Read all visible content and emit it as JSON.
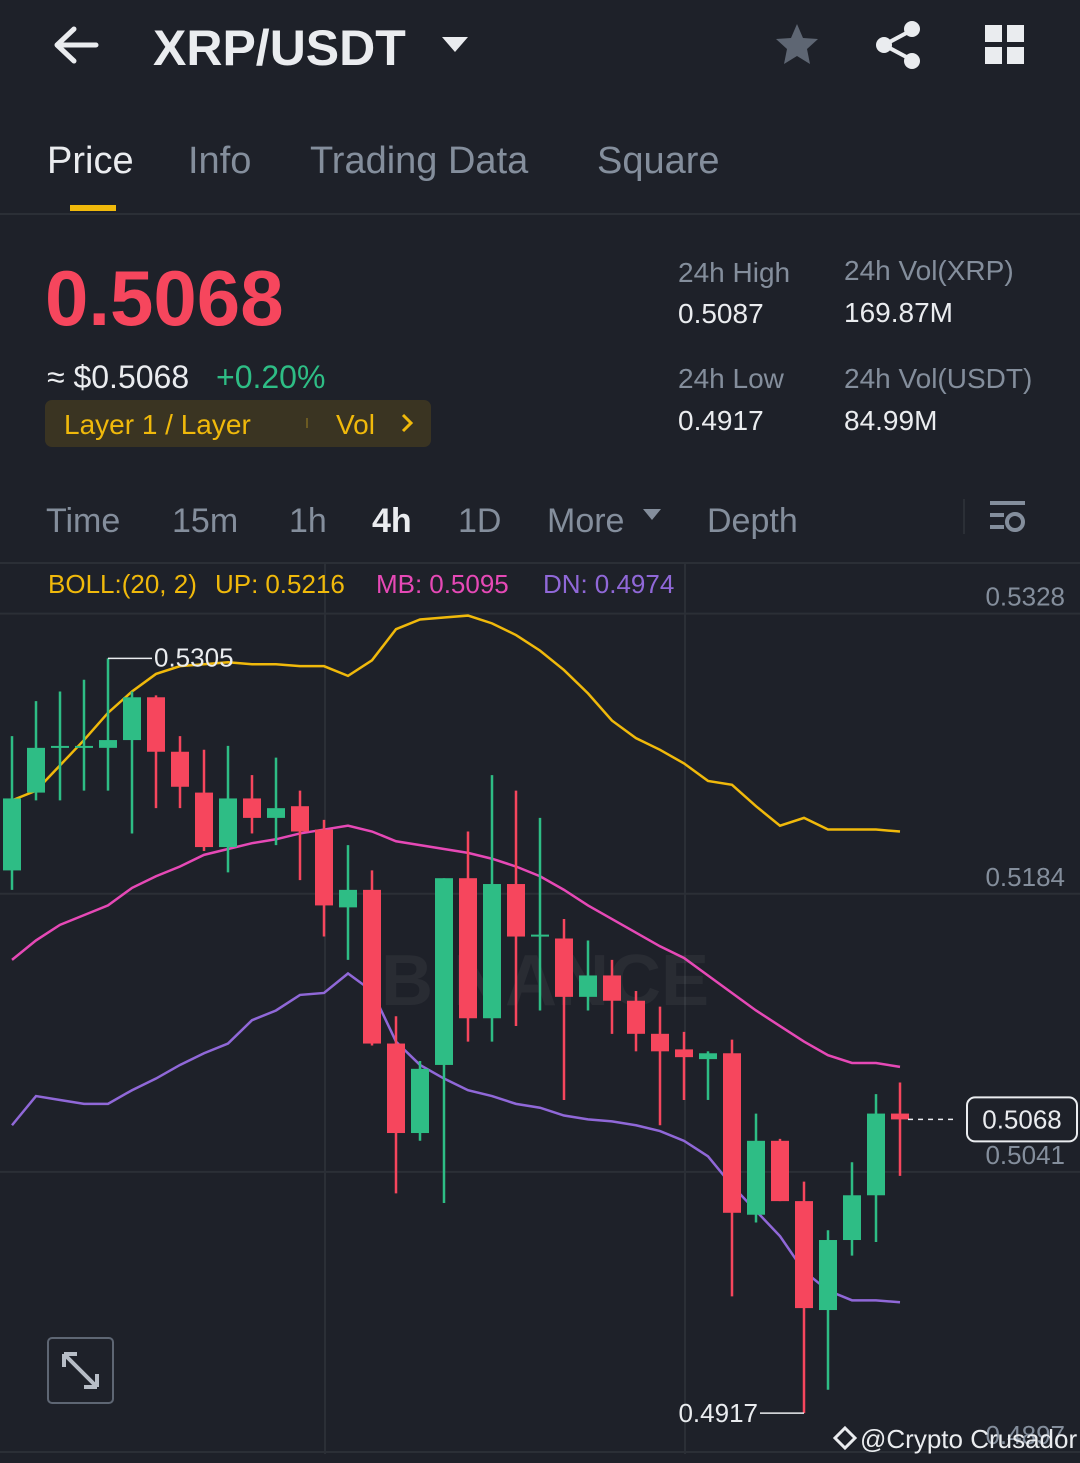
{
  "header": {
    "pair": "XRP/USDT"
  },
  "tabs": [
    "Price",
    "Info",
    "Trading Data",
    "Square"
  ],
  "ticker": {
    "price": "0.5068",
    "usd_price": "≈ $0.5068",
    "change": "+0.20%",
    "tag": "Layer 1 / Layer",
    "tag_extra": "Vol"
  },
  "stats": [
    {
      "label": "24h High",
      "value": "0.5087"
    },
    {
      "label": "24h Vol(XRP)",
      "value": "169.87M"
    },
    {
      "label": "24h Low",
      "value": "0.4917"
    },
    {
      "label": "24h Vol(USDT)",
      "value": "84.99M"
    }
  ],
  "intervals": [
    "Time",
    "15m",
    "1h",
    "4h",
    "1D",
    "More",
    "Depth"
  ],
  "watermark": "@Crypto Crusador",
  "chart_data": {
    "type": "candlestick",
    "indicator": "BOLL:(20, 2)",
    "logo_text": "BINANCE",
    "up_color": "#2ebd85",
    "down_color": "#f6465d",
    "ylim": [
      0.4896,
      0.5353
    ],
    "yticks": [
      0.5328,
      0.5184,
      0.5041,
      0.4897
    ],
    "grid": true,
    "open": [
      0.5196,
      0.5236,
      0.5259,
      0.5259,
      0.5259,
      0.5263,
      0.5285,
      0.5257,
      0.5236,
      0.5208,
      0.5233,
      0.5223,
      0.5229,
      0.5217,
      0.5177,
      0.5186,
      0.5107,
      0.5061,
      0.5096,
      0.5192,
      0.512,
      0.5189,
      0.5162,
      0.5161,
      0.5131,
      0.5142,
      0.5129,
      0.5112,
      0.5104,
      0.5099,
      0.5102,
      0.5019,
      0.5057,
      0.5026,
      0.497,
      0.5006,
      0.5029,
      0.5071
    ],
    "high": [
      0.5265,
      0.5283,
      0.5288,
      0.5294,
      0.5305,
      0.5288,
      0.5286,
      0.5265,
      0.5258,
      0.526,
      0.5245,
      0.5254,
      0.5237,
      0.5222,
      0.5209,
      0.5196,
      0.5121,
      0.5098,
      0.5192,
      0.5216,
      0.5245,
      0.5237,
      0.5223,
      0.5171,
      0.516,
      0.515,
      0.5134,
      0.5126,
      0.5113,
      0.5103,
      0.5109,
      0.5071,
      0.5058,
      0.5036,
      0.5011,
      0.5046,
      0.5081,
      0.5087
    ],
    "low": [
      0.5186,
      0.5232,
      0.5232,
      0.5237,
      0.5237,
      0.5215,
      0.5228,
      0.5228,
      0.5206,
      0.5195,
      0.5215,
      0.5209,
      0.5191,
      0.5162,
      0.515,
      0.5106,
      0.503,
      0.5057,
      0.5025,
      0.5108,
      0.5108,
      0.5116,
      0.5124,
      0.5078,
      0.5124,
      0.5112,
      0.5103,
      0.5065,
      0.5078,
      0.5078,
      0.4977,
      0.5015,
      0.5026,
      0.4917,
      0.4929,
      0.4998,
      0.5005,
      0.5039
    ],
    "close": [
      0.5233,
      0.5259,
      0.526,
      0.526,
      0.5263,
      0.5285,
      0.5257,
      0.5239,
      0.5208,
      0.5233,
      0.5223,
      0.5228,
      0.5216,
      0.5178,
      0.5186,
      0.5107,
      0.5061,
      0.5094,
      0.5192,
      0.512,
      0.5189,
      0.5162,
      0.5163,
      0.5131,
      0.5142,
      0.5129,
      0.5112,
      0.5103,
      0.51,
      0.5102,
      0.502,
      0.5057,
      0.5026,
      0.4971,
      0.5006,
      0.5029,
      0.5071,
      0.5068
    ],
    "series": [
      {
        "name": "UP:",
        "color": "#f0b90b",
        "values": [
          0.5232,
          0.5237,
          0.525,
          0.5263,
          0.5277,
          0.5288,
          0.5297,
          0.5301,
          0.5302,
          0.5303,
          0.5302,
          0.5302,
          0.5301,
          0.5301,
          0.5296,
          0.5304,
          0.532,
          0.5325,
          0.5326,
          0.5327,
          0.5323,
          0.5317,
          0.5309,
          0.5299,
          0.5287,
          0.5273,
          0.5264,
          0.5258,
          0.5251,
          0.5242,
          0.524,
          0.5229,
          0.5219,
          0.5223,
          0.5217,
          0.5217,
          0.5217,
          0.5216
        ]
      },
      {
        "name": "MB:",
        "color": "#e649b6",
        "values": [
          0.515,
          0.516,
          0.5168,
          0.5173,
          0.5178,
          0.5187,
          0.5193,
          0.5198,
          0.5204,
          0.5207,
          0.521,
          0.5212,
          0.5215,
          0.5217,
          0.5219,
          0.5216,
          0.5211,
          0.5209,
          0.5207,
          0.5205,
          0.5202,
          0.5198,
          0.5193,
          0.5186,
          0.5178,
          0.5171,
          0.5164,
          0.5157,
          0.5151,
          0.5142,
          0.5133,
          0.5124,
          0.5116,
          0.5108,
          0.5101,
          0.5097,
          0.5097,
          0.5095
        ]
      },
      {
        "name": "DN:",
        "color": "#9068d8",
        "values": [
          0.5065,
          0.508,
          0.5078,
          0.5076,
          0.5076,
          0.5083,
          0.5089,
          0.5096,
          0.5102,
          0.5107,
          0.5119,
          0.5124,
          0.5132,
          0.5133,
          0.5143,
          0.5134,
          0.5108,
          0.5096,
          0.5089,
          0.5083,
          0.508,
          0.5076,
          0.5074,
          0.507,
          0.5068,
          0.5067,
          0.5065,
          0.5062,
          0.5057,
          0.5049,
          0.5034,
          0.5021,
          0.5008,
          0.499,
          0.498,
          0.4975,
          0.4975,
          0.4974
        ]
      }
    ]
  }
}
